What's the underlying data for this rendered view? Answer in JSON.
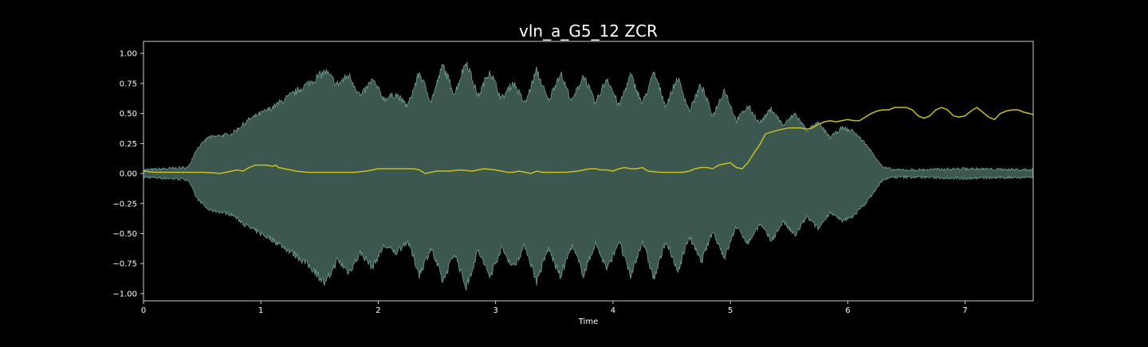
{
  "chart_data": {
    "type": "area",
    "title": "vln_a_G5_12 ZCR",
    "xlabel": "Time",
    "ylabel": "",
    "xlim": [
      0,
      7.58
    ],
    "ylim": [
      -1.06,
      1.1
    ],
    "x_ticks": [
      0,
      1,
      2,
      3,
      4,
      5,
      6,
      7
    ],
    "x_tick_labels": [
      "0",
      "1",
      "2",
      "3",
      "4",
      "5",
      "6",
      "7"
    ],
    "y_ticks": [
      1.0,
      0.75,
      0.5,
      0.25,
      0.0,
      -0.25,
      -0.5,
      -0.75,
      -1.0
    ],
    "y_tick_labels": [
      "1.00",
      "0.75",
      "0.50",
      "0.25",
      "0.00",
      "−0.25",
      "−0.50",
      "−0.75",
      "−1.00"
    ],
    "grid": false,
    "legend": "none",
    "colors": {
      "background": "#000000",
      "axes_edge": "#ffffff",
      "text": "#ffffff",
      "waveform_fill": "#3b5750",
      "waveform_edge": "#6e9e92",
      "zcr_line": "#c7c21f"
    },
    "series": [
      {
        "kind": "waveform_envelope",
        "envelope": {
          "x": [
            0,
            0.2,
            0.38,
            0.45,
            0.55,
            0.75,
            0.9,
            1.1,
            1.3,
            1.45,
            1.55,
            1.65,
            1.75,
            1.85,
            1.95,
            2.05,
            2.15,
            2.25,
            2.35,
            2.45,
            2.55,
            2.65,
            2.75,
            2.85,
            2.95,
            3.05,
            3.15,
            3.25,
            3.35,
            3.45,
            3.55,
            3.65,
            3.75,
            3.85,
            3.95,
            4.05,
            4.15,
            4.25,
            4.35,
            4.45,
            4.55,
            4.65,
            4.75,
            4.85,
            4.95,
            5.05,
            5.15,
            5.25,
            5.35,
            5.45,
            5.55,
            5.65,
            5.75,
            5.85,
            5.95,
            6.05,
            6.15,
            6.25,
            6.3,
            6.4,
            6.6,
            7.0,
            7.58
          ],
          "upper": [
            0.03,
            0.04,
            0.05,
            0.2,
            0.3,
            0.33,
            0.45,
            0.55,
            0.68,
            0.78,
            0.85,
            0.74,
            0.82,
            0.64,
            0.78,
            0.62,
            0.66,
            0.56,
            0.84,
            0.6,
            0.9,
            0.66,
            0.94,
            0.64,
            0.86,
            0.62,
            0.76,
            0.58,
            0.86,
            0.6,
            0.84,
            0.6,
            0.82,
            0.58,
            0.8,
            0.56,
            0.82,
            0.58,
            0.84,
            0.56,
            0.8,
            0.52,
            0.74,
            0.48,
            0.7,
            0.44,
            0.56,
            0.42,
            0.54,
            0.4,
            0.5,
            0.36,
            0.42,
            0.3,
            0.38,
            0.35,
            0.25,
            0.12,
            0.05,
            0.03,
            0.03,
            0.04,
            0.03
          ],
          "lower": [
            -0.03,
            -0.04,
            -0.05,
            -0.2,
            -0.3,
            -0.34,
            -0.45,
            -0.55,
            -0.68,
            -0.8,
            -0.92,
            -0.72,
            -0.82,
            -0.66,
            -0.78,
            -0.6,
            -0.66,
            -0.56,
            -0.84,
            -0.62,
            -0.9,
            -0.66,
            -0.95,
            -0.64,
            -0.86,
            -0.62,
            -0.78,
            -0.6,
            -0.9,
            -0.62,
            -0.86,
            -0.6,
            -0.84,
            -0.58,
            -0.8,
            -0.56,
            -0.86,
            -0.56,
            -0.88,
            -0.56,
            -0.82,
            -0.52,
            -0.74,
            -0.48,
            -0.7,
            -0.44,
            -0.58,
            -0.42,
            -0.56,
            -0.4,
            -0.52,
            -0.36,
            -0.46,
            -0.32,
            -0.4,
            -0.35,
            -0.25,
            -0.12,
            -0.05,
            -0.03,
            -0.03,
            -0.04,
            -0.03
          ]
        }
      },
      {
        "kind": "line",
        "x": [
          0,
          0.1,
          0.2,
          0.3,
          0.4,
          0.5,
          0.6,
          0.65,
          0.7,
          0.75,
          0.8,
          0.85,
          0.9,
          0.95,
          1.0,
          1.05,
          1.1,
          1.13,
          1.15,
          1.2,
          1.25,
          1.3,
          1.4,
          1.5,
          1.6,
          1.7,
          1.8,
          1.9,
          1.95,
          2.0,
          2.1,
          2.2,
          2.3,
          2.35,
          2.4,
          2.45,
          2.5,
          2.6,
          2.7,
          2.8,
          2.9,
          3.0,
          3.05,
          3.1,
          3.15,
          3.2,
          3.25,
          3.3,
          3.35,
          3.4,
          3.45,
          3.5,
          3.6,
          3.7,
          3.75,
          3.8,
          3.85,
          3.9,
          3.95,
          4.0,
          4.05,
          4.1,
          4.15,
          4.2,
          4.25,
          4.3,
          4.4,
          4.45,
          4.5,
          4.55,
          4.6,
          4.65,
          4.7,
          4.75,
          4.8,
          4.85,
          4.9,
          4.95,
          5.0,
          5.05,
          5.1,
          5.15,
          5.2,
          5.25,
          5.3,
          5.4,
          5.5,
          5.6,
          5.65,
          5.7,
          5.75,
          5.8,
          5.85,
          5.9,
          5.95,
          6.0,
          6.05,
          6.1,
          6.15,
          6.2,
          6.25,
          6.3,
          6.35,
          6.4,
          6.45,
          6.5,
          6.55,
          6.6,
          6.65,
          6.7,
          6.75,
          6.8,
          6.85,
          6.9,
          6.95,
          7.0,
          7.05,
          7.1,
          7.15,
          7.2,
          7.25,
          7.3,
          7.35,
          7.4,
          7.45,
          7.5,
          7.55,
          7.58
        ],
        "y": [
          0.02,
          0.01,
          0.01,
          0.01,
          0.01,
          0.01,
          0.005,
          0.0,
          0.01,
          0.02,
          0.03,
          0.02,
          0.05,
          0.07,
          0.07,
          0.07,
          0.06,
          0.07,
          0.05,
          0.04,
          0.03,
          0.02,
          0.01,
          0.01,
          0.01,
          0.01,
          0.01,
          0.02,
          0.03,
          0.04,
          0.04,
          0.04,
          0.04,
          0.03,
          0.0,
          0.01,
          0.02,
          0.02,
          0.03,
          0.02,
          0.04,
          0.03,
          0.02,
          0.01,
          0.01,
          0.02,
          0.01,
          0.0,
          0.02,
          0.01,
          0.01,
          0.01,
          0.01,
          0.02,
          0.03,
          0.04,
          0.04,
          0.03,
          0.03,
          0.02,
          0.04,
          0.05,
          0.04,
          0.04,
          0.05,
          0.02,
          0.01,
          0.01,
          0.01,
          0.01,
          0.01,
          0.02,
          0.04,
          0.05,
          0.05,
          0.04,
          0.07,
          0.08,
          0.09,
          0.05,
          0.04,
          0.09,
          0.17,
          0.24,
          0.33,
          0.36,
          0.38,
          0.38,
          0.37,
          0.38,
          0.41,
          0.43,
          0.44,
          0.43,
          0.44,
          0.45,
          0.44,
          0.44,
          0.47,
          0.5,
          0.52,
          0.53,
          0.53,
          0.55,
          0.55,
          0.55,
          0.53,
          0.48,
          0.46,
          0.48,
          0.53,
          0.55,
          0.53,
          0.48,
          0.47,
          0.48,
          0.52,
          0.55,
          0.51,
          0.47,
          0.45,
          0.5,
          0.52,
          0.53,
          0.53,
          0.51,
          0.5,
          0.49
        ]
      }
    ]
  }
}
